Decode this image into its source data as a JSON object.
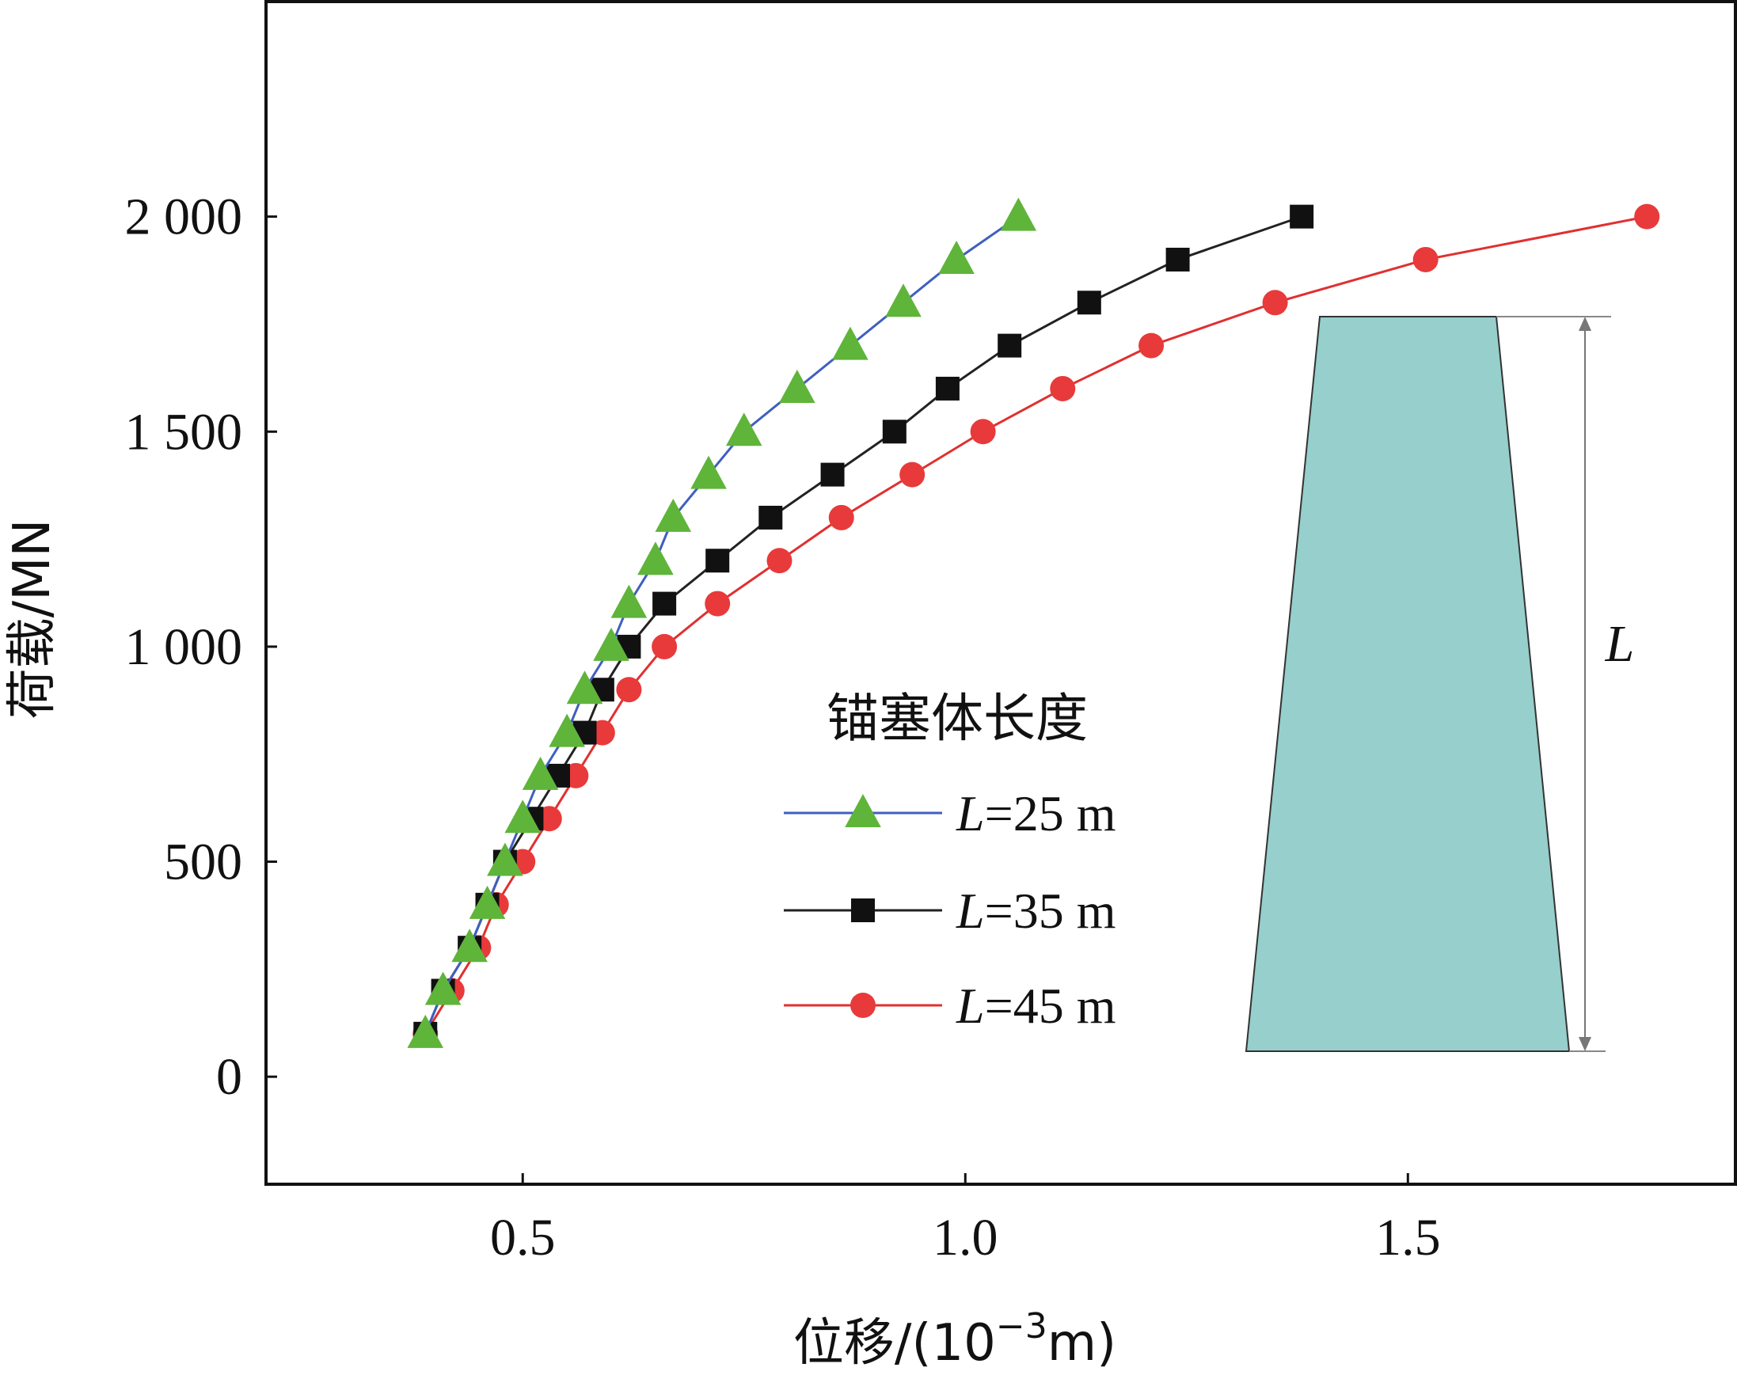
{
  "chart_data": {
    "type": "line",
    "xlabel": "位移/(10⁻³m)",
    "ylabel": "荷载/MN",
    "xlim": [
      0.21,
      1.87
    ],
    "ylim": [
      -250,
      2500
    ],
    "x_ticks": [
      0.5,
      1.0,
      1.5
    ],
    "x_tick_labels": [
      "0.5",
      "1.0",
      "1.5"
    ],
    "y_ticks": [
      0,
      500,
      1000,
      1500,
      2000
    ],
    "y_tick_labels": [
      "0",
      "500",
      "1 000",
      "1 500",
      "2 000"
    ],
    "grid": false,
    "legend": {
      "title": "锚塞体长度",
      "placement": "center",
      "entries": [
        "L=25 m",
        "L=35 m",
        "L=45 m"
      ]
    },
    "series": [
      {
        "name": "L=25 m",
        "marker": "triangle",
        "line_color": "#3f5fbf",
        "marker_color": "#5fb43a",
        "x": [
          0.39,
          0.41,
          0.44,
          0.46,
          0.48,
          0.5,
          0.52,
          0.55,
          0.57,
          0.6,
          0.62,
          0.65,
          0.67,
          0.71,
          0.75,
          0.81,
          0.87,
          0.93,
          0.99,
          1.06
        ],
        "y": [
          100,
          200,
          300,
          400,
          500,
          600,
          700,
          800,
          900,
          1000,
          1100,
          1200,
          1300,
          1400,
          1500,
          1600,
          1700,
          1800,
          1900,
          2000
        ]
      },
      {
        "name": "L=35 m",
        "marker": "square",
        "line_color": "#222222",
        "marker_color": "#111111",
        "x": [
          0.39,
          0.41,
          0.44,
          0.46,
          0.48,
          0.51,
          0.54,
          0.57,
          0.59,
          0.62,
          0.66,
          0.72,
          0.78,
          0.85,
          0.92,
          0.98,
          1.05,
          1.14,
          1.24,
          1.38
        ],
        "y": [
          100,
          200,
          300,
          400,
          500,
          600,
          700,
          800,
          900,
          1000,
          1100,
          1200,
          1300,
          1400,
          1500,
          1600,
          1700,
          1800,
          1900,
          2000
        ]
      },
      {
        "name": "L=45 m",
        "marker": "circle",
        "line_color": "#e03030",
        "marker_color": "#e83a3a",
        "x": [
          0.39,
          0.42,
          0.45,
          0.47,
          0.5,
          0.53,
          0.56,
          0.59,
          0.62,
          0.66,
          0.72,
          0.79,
          0.86,
          0.94,
          1.02,
          1.11,
          1.21,
          1.35,
          1.52,
          1.77
        ],
        "y": [
          100,
          200,
          300,
          400,
          500,
          600,
          700,
          800,
          900,
          1000,
          1100,
          1200,
          1300,
          1400,
          1500,
          1600,
          1700,
          1800,
          1900,
          2000
        ]
      }
    ],
    "inset": {
      "shape": "trapezoid",
      "fill_color": "#96cfcb",
      "dimension_label": "L"
    }
  }
}
